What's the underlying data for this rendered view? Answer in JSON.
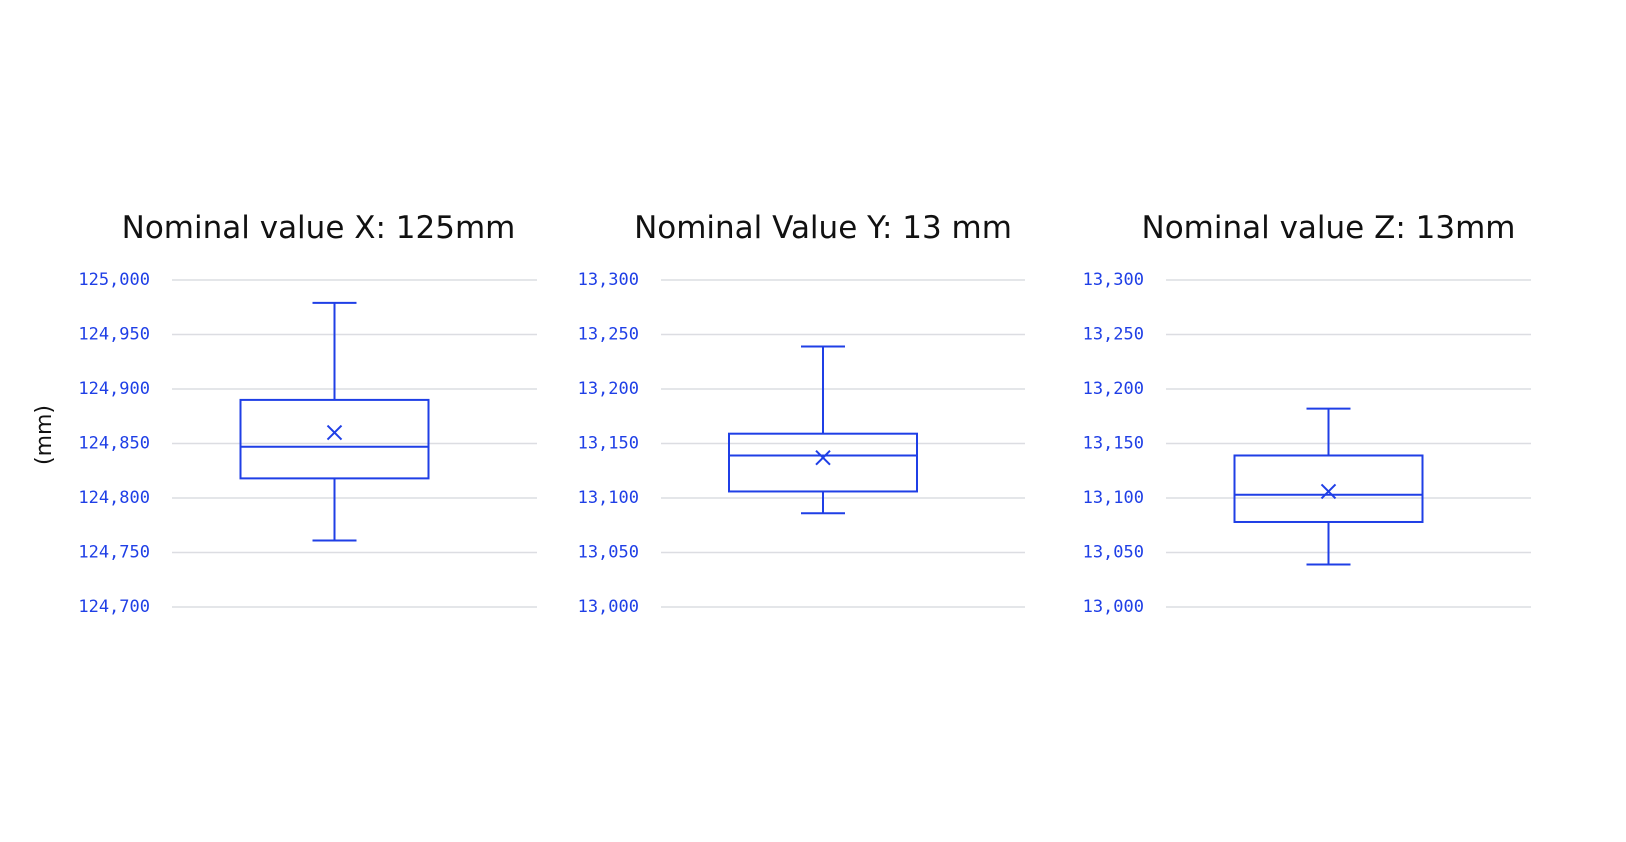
{
  "chart_data": [
    {
      "type": "box",
      "title": "Nominal value X: 125mm",
      "ylabel": "(mm)",
      "color": "#1f3fe6",
      "grid": true,
      "ylim": [
        124.7,
        125.0
      ],
      "yticks": [
        {
          "value": 124.7,
          "label": "124,700"
        },
        {
          "value": 124.75,
          "label": "124,750"
        },
        {
          "value": 124.8,
          "label": "124,800"
        },
        {
          "value": 124.85,
          "label": "124,850"
        },
        {
          "value": 124.9,
          "label": "124,900"
        },
        {
          "value": 124.95,
          "label": "124,950"
        },
        {
          "value": 125.0,
          "label": "125,000"
        }
      ],
      "box": {
        "whislo": 124.761,
        "q1": 124.818,
        "med": 124.847,
        "q3": 124.89,
        "whishi": 124.979,
        "mean": 124.86
      }
    },
    {
      "type": "box",
      "title": "Nominal Value Y: 13 mm",
      "color": "#1f3fe6",
      "grid": true,
      "ylim": [
        13.0,
        13.3
      ],
      "yticks": [
        {
          "value": 13.0,
          "label": "13,000"
        },
        {
          "value": 13.05,
          "label": "13,050"
        },
        {
          "value": 13.1,
          "label": "13,100"
        },
        {
          "value": 13.15,
          "label": "13,150"
        },
        {
          "value": 13.2,
          "label": "13,200"
        },
        {
          "value": 13.25,
          "label": "13,250"
        },
        {
          "value": 13.3,
          "label": "13,300"
        }
      ],
      "box": {
        "whislo": 13.086,
        "q1": 13.106,
        "med": 13.139,
        "q3": 13.159,
        "whishi": 13.239,
        "mean": 13.137
      }
    },
    {
      "type": "box",
      "title": "Nominal value Z: 13mm",
      "color": "#1f3fe6",
      "grid": true,
      "ylim": [
        13.0,
        13.3
      ],
      "yticks": [
        {
          "value": 13.0,
          "label": "13,000"
        },
        {
          "value": 13.05,
          "label": "13,050"
        },
        {
          "value": 13.1,
          "label": "13,100"
        },
        {
          "value": 13.15,
          "label": "13,150"
        },
        {
          "value": 13.2,
          "label": "13,200"
        },
        {
          "value": 13.25,
          "label": "13,250"
        },
        {
          "value": 13.3,
          "label": "13,300"
        }
      ],
      "box": {
        "whislo": 13.039,
        "q1": 13.078,
        "med": 13.103,
        "q3": 13.139,
        "whishi": 13.182,
        "mean": 13.106
      }
    }
  ]
}
